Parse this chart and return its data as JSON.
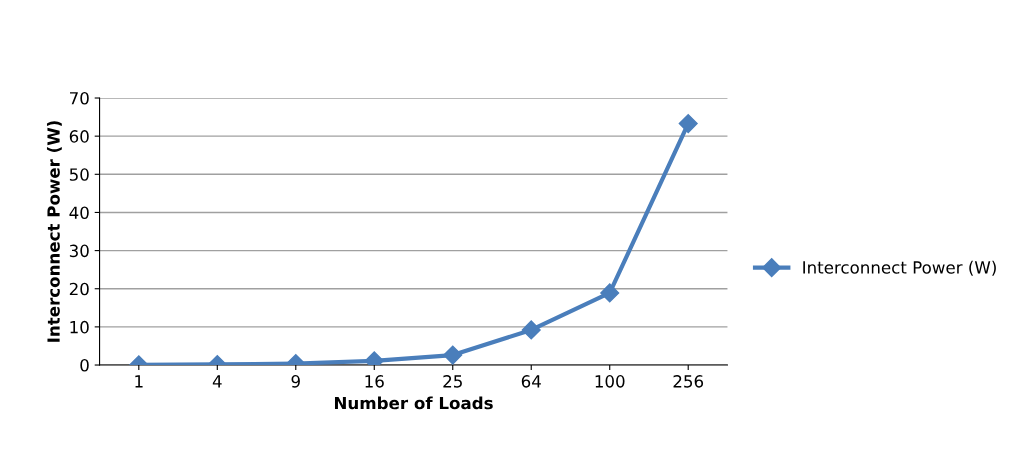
{
  "chart_data": {
    "type": "line",
    "xlabel": "Number of Loads",
    "ylabel": "Interconnect Power (W)",
    "categories": [
      "1",
      "4",
      "9",
      "16",
      "25",
      "64",
      "100",
      "256"
    ],
    "series": [
      {
        "name": "Interconnect Power (W)",
        "color": "#4a7ebb",
        "values": [
          0.05,
          0.15,
          0.4,
          1.1,
          2.6,
          9.2,
          18.9,
          63.3
        ]
      }
    ],
    "ylim": [
      0,
      70
    ],
    "yticks": [
      0,
      10,
      20,
      30,
      40,
      50,
      60,
      70
    ],
    "grid": "y",
    "legend": "right",
    "marker": "diamond",
    "line_style": "solid"
  }
}
